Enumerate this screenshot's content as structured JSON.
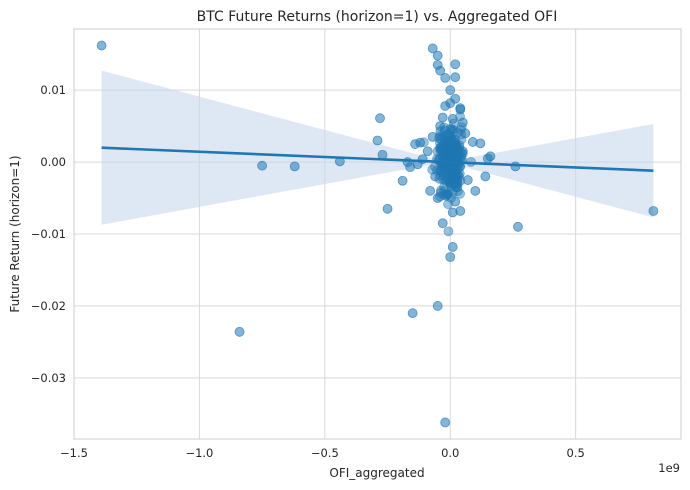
{
  "chart_data": {
    "type": "scatter",
    "title": "BTC Future Returns (horizon=1) vs. Aggregated OFI",
    "xlabel": "OFI_aggregated",
    "ylabel": "Future Return (horizon=1)",
    "x_offset_label": "1e9",
    "xlim": [
      -1.5,
      0.92
    ],
    "ylim": [
      -0.0385,
      0.0185
    ],
    "x_ticks": [
      -1.5,
      -1.0,
      -0.5,
      0.0,
      0.5
    ],
    "x_tick_labels": [
      "−1.5",
      "−1.0",
      "−0.5",
      "0.0",
      "0.5"
    ],
    "y_ticks": [
      0.01,
      0.0,
      -0.01,
      -0.02,
      -0.03
    ],
    "y_tick_labels": [
      "0.01",
      "0.00",
      "−0.01",
      "−0.02",
      "−0.03"
    ],
    "grid": true,
    "point_color": "#1f77b4",
    "line_color": "#1f77b4",
    "band_color": "#c6d9ec",
    "regression": {
      "x": [
        -1.39,
        0.81
      ],
      "y": [
        0.002,
        -0.0012
      ],
      "ci_lower": [
        -0.0122,
        -0.0052
      ],
      "ci_upper": [
        0.0105,
        0.007
      ],
      "ci_center_x": -0.02
    },
    "points": [
      [
        -1.39,
        0.0162
      ],
      [
        -0.84,
        -0.0236
      ],
      [
        -0.75,
        -0.0005
      ],
      [
        -0.62,
        -0.0006
      ],
      [
        -0.44,
        0.0001
      ],
      [
        -0.29,
        0.003
      ],
      [
        -0.28,
        0.0061
      ],
      [
        -0.27,
        0.001
      ],
      [
        -0.25,
        -0.0065
      ],
      [
        -0.19,
        -0.0026
      ],
      [
        -0.14,
        0.0025
      ],
      [
        -0.12,
        0.0027
      ],
      [
        -0.15,
        -0.021
      ],
      [
        -0.05,
        -0.02
      ],
      [
        -0.02,
        -0.0362
      ],
      [
        -0.07,
        0.0158
      ],
      [
        -0.05,
        0.0148
      ],
      [
        -0.05,
        0.0135
      ],
      [
        -0.04,
        0.0127
      ],
      [
        0.02,
        0.0136
      ],
      [
        -0.02,
        0.0117
      ],
      [
        0.02,
        0.0118
      ],
      [
        0.0,
        0.01
      ],
      [
        0.02,
        0.0088
      ],
      [
        -0.02,
        0.0078
      ],
      [
        0.0,
        0.0082
      ],
      [
        0.04,
        0.0075
      ],
      [
        0.04,
        0.0073
      ],
      [
        -0.03,
        0.0062
      ],
      [
        0.01,
        0.006
      ],
      [
        0.05,
        0.0055
      ],
      [
        -0.04,
        0.005
      ],
      [
        0.09,
        0.0028
      ],
      [
        0.12,
        0.0026
      ],
      [
        0.15,
        0.0005
      ],
      [
        0.16,
        0.0008
      ],
      [
        0.14,
        -0.002
      ],
      [
        0.26,
        -0.0006
      ],
      [
        0.27,
        -0.009
      ],
      [
        0.81,
        -0.0068
      ],
      [
        0.01,
        -0.0118
      ],
      [
        0.0,
        -0.0132
      ],
      [
        -0.03,
        -0.0085
      ],
      [
        -0.05,
        -0.005
      ],
      [
        0.01,
        -0.007
      ],
      [
        0.04,
        -0.0068
      ],
      [
        -0.06,
        -0.002
      ],
      [
        -0.09,
        0.0015
      ],
      [
        -0.11,
        0.0004
      ],
      [
        -0.13,
        -0.0003
      ],
      [
        -0.17,
        0.0
      ],
      [
        -0.16,
        -0.0007
      ],
      [
        0.07,
        -0.0025
      ],
      [
        0.1,
        -0.004
      ],
      [
        -0.08,
        -0.004
      ],
      [
        -0.07,
        0.0035
      ],
      [
        0.06,
        0.004
      ],
      [
        -0.02,
        0.003
      ],
      [
        0.03,
        -0.003
      ],
      [
        -0.01,
        -0.0045
      ],
      [
        0.02,
        -0.0055
      ],
      [
        -0.04,
        0.002
      ],
      [
        0.05,
        0.0015
      ],
      [
        -0.03,
        -0.0015
      ],
      [
        0.01,
        0.0045
      ]
    ]
  }
}
